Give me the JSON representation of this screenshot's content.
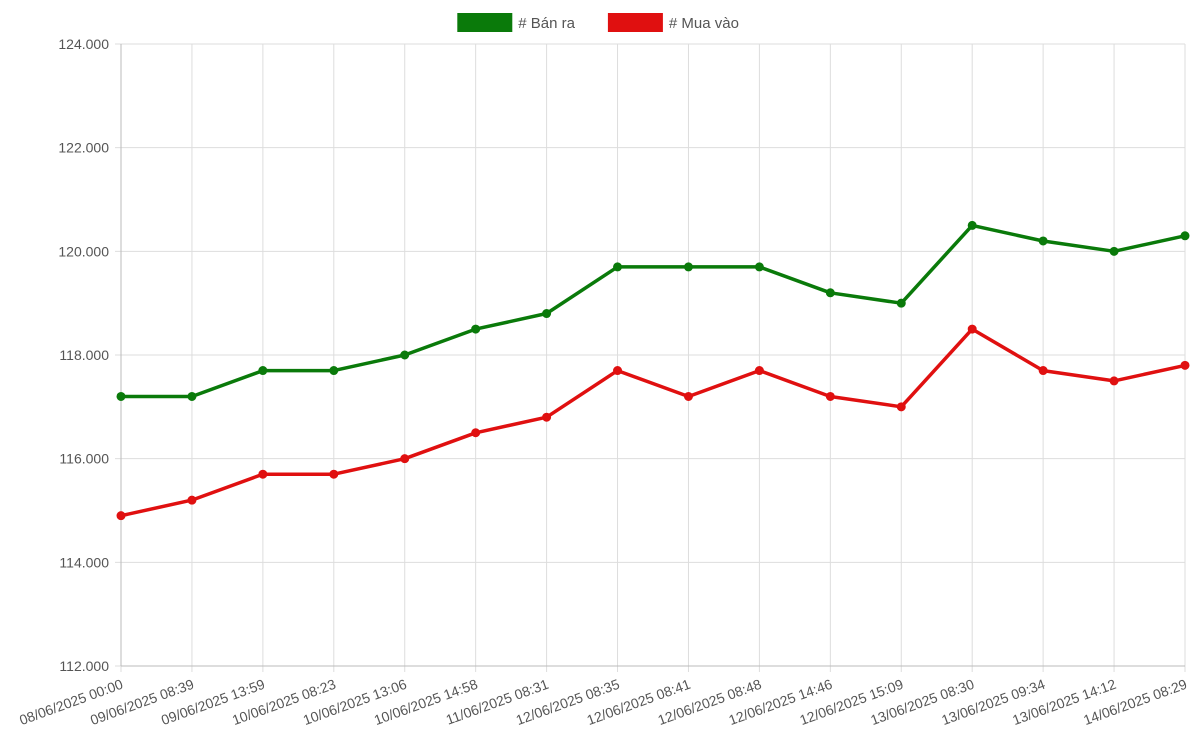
{
  "chart_data": {
    "type": "line",
    "title": "",
    "xlabel": "",
    "ylabel": "",
    "categories": [
      "08/06/2025 00:00",
      "09/06/2025 08:39",
      "09/06/2025 13:59",
      "10/06/2025 08:23",
      "10/06/2025 13:06",
      "10/06/2025 14:58",
      "11/06/2025 08:31",
      "12/06/2025 08:35",
      "12/06/2025 08:41",
      "12/06/2025 08:48",
      "12/06/2025 14:46",
      "12/06/2025 15:09",
      "13/06/2025 08:30",
      "13/06/2025 09:34",
      "13/06/2025 14:12",
      "14/06/2025 08:29"
    ],
    "ylim": [
      112000,
      124000
    ],
    "yticks": [
      112000,
      114000,
      116000,
      118000,
      120000,
      122000,
      124000
    ],
    "ytick_labels": [
      "112.000",
      "114.000",
      "116.000",
      "118.000",
      "120.000",
      "122.000",
      "124.000"
    ],
    "grid": true,
    "legend_position": "top",
    "series": [
      {
        "name": "# Bán ra",
        "color": "#0a7a0a",
        "values": [
          117200,
          117200,
          117700,
          117700,
          118000,
          118500,
          118800,
          119700,
          119700,
          119700,
          119200,
          119000,
          120500,
          120200,
          120000,
          120300
        ]
      },
      {
        "name": "# Mua vào",
        "color": "#e01010",
        "values": [
          114900,
          115200,
          115700,
          115700,
          116000,
          116500,
          116800,
          117700,
          117200,
          117700,
          117200,
          117000,
          118500,
          117700,
          117500,
          117800
        ]
      }
    ]
  }
}
